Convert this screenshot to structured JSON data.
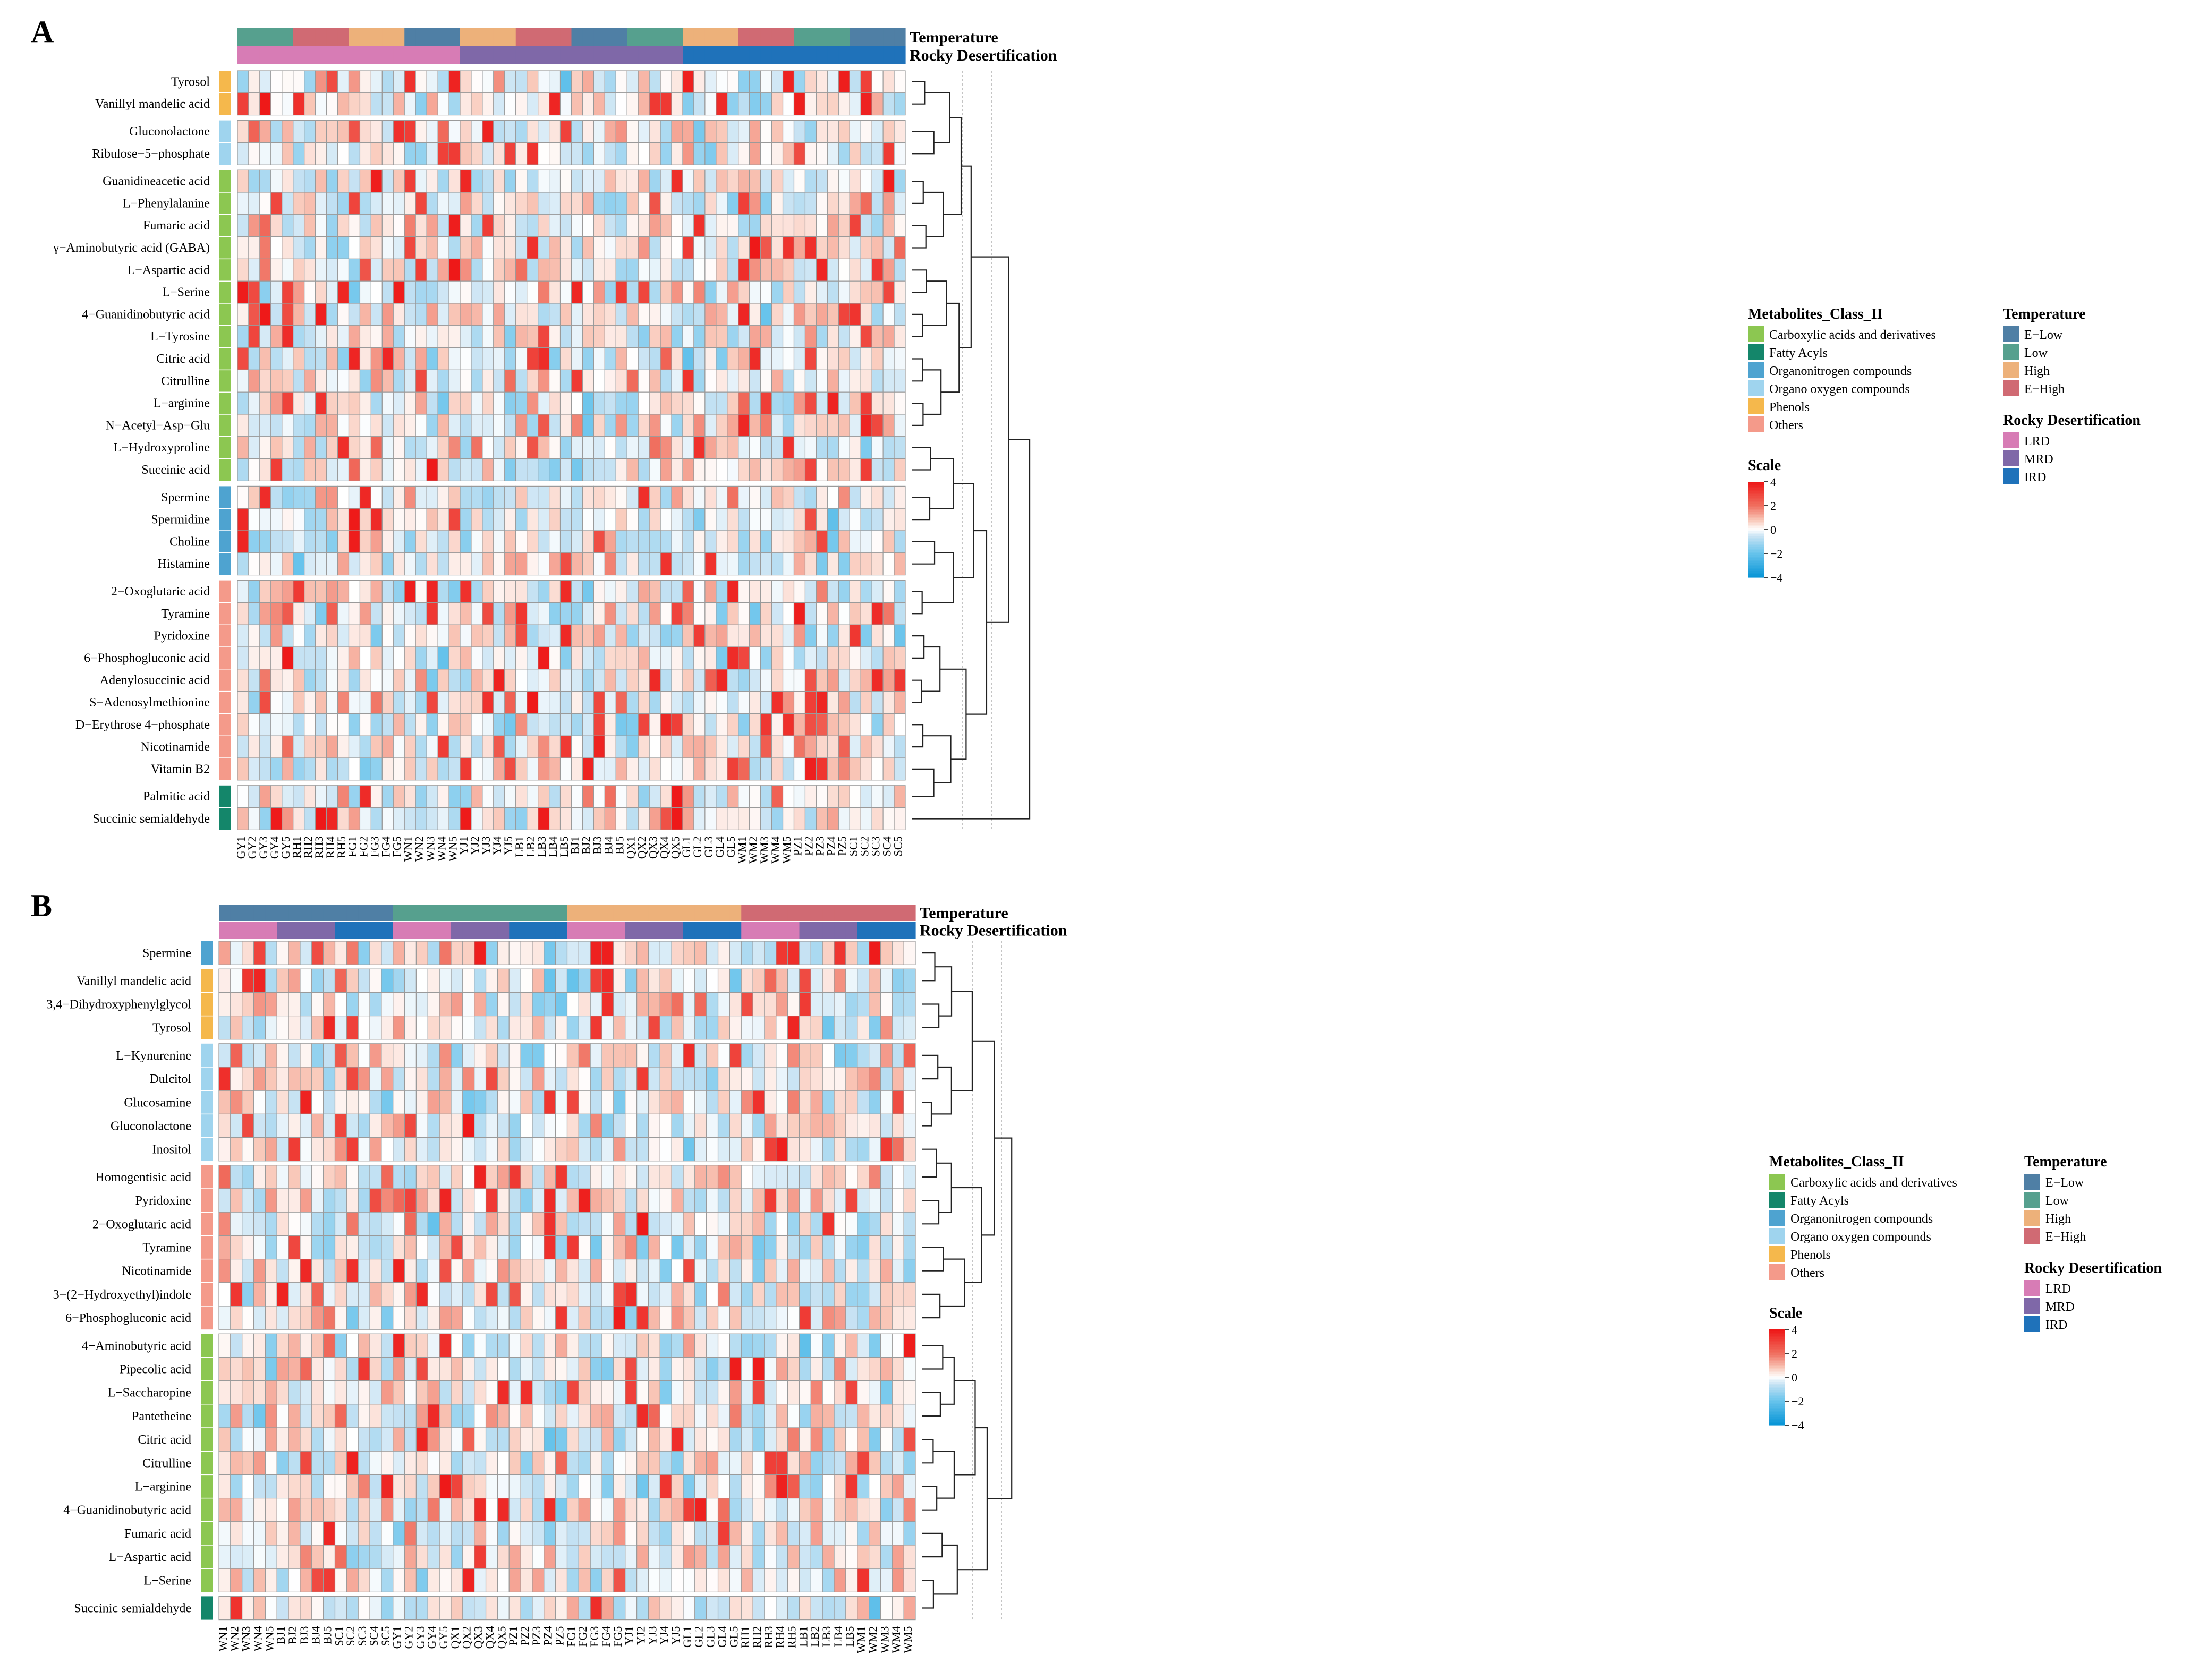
{
  "legend": {
    "class_title": "Metabolites_Class_II",
    "class_items": [
      {
        "label": "Carboxylic acids and derivatives",
        "color": "#8CC751"
      },
      {
        "label": "Fatty Acyls",
        "color": "#14866A"
      },
      {
        "label": "Organonitrogen compounds",
        "color": "#4EA3D0"
      },
      {
        "label": "Organo oxygen compounds",
        "color": "#9FD4EE"
      },
      {
        "label": "Phenols",
        "color": "#F5B84C"
      },
      {
        "label": "Others",
        "color": "#F49A8A"
      }
    ],
    "temp_title": "Temperature",
    "temp_items": [
      {
        "label": "E−Low",
        "color": "#4F7FA5"
      },
      {
        "label": "Low",
        "color": "#56A08E"
      },
      {
        "label": "High",
        "color": "#EDB17A"
      },
      {
        "label": "E−High",
        "color": "#D06A73"
      }
    ],
    "rock_title": "Rocky Desertification",
    "rock_items": [
      {
        "label": "LRD",
        "color": "#D77CB5"
      },
      {
        "label": "MRD",
        "color": "#7F68A8"
      },
      {
        "label": "IRD",
        "color": "#1F72BA"
      }
    ],
    "scale_title": "Scale",
    "scale_ticks": [
      "4",
      "2",
      "0",
      "−2",
      "−4"
    ],
    "scale_values": [
      4,
      2,
      0,
      -2,
      -4
    ]
  },
  "chart_data": [
    {
      "type": "heatmap",
      "panel_label": "A",
      "annotation_labels": [
        "Temperature",
        "Rocky Desertification"
      ],
      "samples": [
        "GY1",
        "GY2",
        "GY3",
        "GY4",
        "GY5",
        "RH1",
        "RH2",
        "RH3",
        "RH4",
        "RH5",
        "FG1",
        "FG2",
        "FG3",
        "FG4",
        "FG5",
        "WN1",
        "WN2",
        "WN3",
        "WN4",
        "WN5",
        "YJ1",
        "YJ2",
        "YJ3",
        "YJ4",
        "YJ5",
        "LB1",
        "LB2",
        "LB3",
        "LB4",
        "LB5",
        "BJ1",
        "BJ2",
        "BJ3",
        "BJ4",
        "BJ5",
        "QX1",
        "QX2",
        "QX3",
        "QX4",
        "QX5",
        "GL1",
        "GL2",
        "GL3",
        "GL4",
        "GL5",
        "WM1",
        "WM2",
        "WM3",
        "WM4",
        "WM5",
        "PZ1",
        "PZ2",
        "PZ3",
        "PZ4",
        "PZ5",
        "SC1",
        "SC2",
        "SC3",
        "SC4",
        "SC5"
      ],
      "sample_temperature": [
        "Low",
        "Low",
        "Low",
        "Low",
        "Low",
        "E-High",
        "E-High",
        "E-High",
        "E-High",
        "E-High",
        "High",
        "High",
        "High",
        "High",
        "High",
        "E-Low",
        "E-Low",
        "E-Low",
        "E-Low",
        "E-Low",
        "High",
        "High",
        "High",
        "High",
        "High",
        "E-High",
        "E-High",
        "E-High",
        "E-High",
        "E-High",
        "E-Low",
        "E-Low",
        "E-Low",
        "E-Low",
        "E-Low",
        "Low",
        "Low",
        "Low",
        "Low",
        "Low",
        "High",
        "High",
        "High",
        "High",
        "High",
        "E-High",
        "E-High",
        "E-High",
        "E-High",
        "E-High",
        "Low",
        "Low",
        "Low",
        "Low",
        "Low",
        "E-Low",
        "E-Low",
        "E-Low",
        "E-Low",
        "E-Low"
      ],
      "sample_rocky": [
        "LRD",
        "LRD",
        "LRD",
        "LRD",
        "LRD",
        "LRD",
        "LRD",
        "LRD",
        "LRD",
        "LRD",
        "LRD",
        "LRD",
        "LRD",
        "LRD",
        "LRD",
        "LRD",
        "LRD",
        "LRD",
        "LRD",
        "LRD",
        "MRD",
        "MRD",
        "MRD",
        "MRD",
        "MRD",
        "MRD",
        "MRD",
        "MRD",
        "MRD",
        "MRD",
        "MRD",
        "MRD",
        "MRD",
        "MRD",
        "MRD",
        "MRD",
        "MRD",
        "MRD",
        "MRD",
        "MRD",
        "IRD",
        "IRD",
        "IRD",
        "IRD",
        "IRD",
        "IRD",
        "IRD",
        "IRD",
        "IRD",
        "IRD",
        "IRD",
        "IRD",
        "IRD",
        "IRD",
        "IRD",
        "IRD",
        "IRD",
        "IRD",
        "IRD",
        "IRD"
      ],
      "groups": [
        {
          "class": "Phenols",
          "metabolites": [
            "Tyrosol",
            "Vanillyl mandelic acid"
          ]
        },
        {
          "class": "Organo oxygen compounds",
          "metabolites": [
            "Gluconolactone",
            "Ribulose−5−phosphate"
          ]
        },
        {
          "class": "Carboxylic acids and derivatives",
          "metabolites": [
            "Guanidineacetic acid",
            "L−Phenylalanine",
            "Fumaric acid",
            "γ−Aminobutyric acid (GABA)",
            "L−Aspartic acid",
            "L−Serine",
            "4−Guanidinobutyric acid",
            "L−Tyrosine",
            "Citric acid",
            "Citrulline",
            "L−arginine",
            "N−Acetyl−Asp−Glu",
            "L−Hydroxyproline",
            "Succinic acid"
          ]
        },
        {
          "class": "Organonitrogen compounds",
          "metabolites": [
            "Spermine",
            "Spermidine",
            "Choline",
            "Histamine"
          ]
        },
        {
          "class": "Others",
          "metabolites": [
            "2−Oxoglutaric acid",
            "Tyramine",
            "Pyridoxine",
            "6−Phosphogluconic acid",
            "Adenylosuccinic acid",
            "S−Adenosylmethionine",
            "D−Erythrose 4−phosphate",
            "Nicotinamide",
            "Vitamin B2"
          ]
        },
        {
          "class": "Fatty Acyls",
          "metabolites": [
            "Palmitic acid",
            "Succinic semialdehyde"
          ]
        }
      ],
      "value_range": [
        -4,
        4
      ],
      "values_note": "z-scores per metabolite; approximated from cell colours",
      "seed": 11
    },
    {
      "type": "heatmap",
      "panel_label": "B",
      "annotation_labels": [
        "Temperature",
        "Rocky Desertification"
      ],
      "samples": [
        "WN1",
        "WN2",
        "WN3",
        "WN4",
        "WN5",
        "BJ1",
        "BJ2",
        "BJ3",
        "BJ4",
        "BJ5",
        "SC1",
        "SC2",
        "SC3",
        "SC4",
        "SC5",
        "GY1",
        "GY2",
        "GY3",
        "GY4",
        "GY5",
        "QX1",
        "QX2",
        "QX3",
        "QX4",
        "QX5",
        "PZ1",
        "PZ2",
        "PZ3",
        "PZ4",
        "PZ5",
        "FG1",
        "FG2",
        "FG3",
        "FG4",
        "FG5",
        "YJ1",
        "YJ2",
        "YJ3",
        "YJ4",
        "YJ5",
        "GL1",
        "GL2",
        "GL3",
        "GL4",
        "GL5",
        "RH1",
        "RH2",
        "RH3",
        "RH4",
        "RH5",
        "LB1",
        "LB2",
        "LB3",
        "LB4",
        "LB5",
        "WM1",
        "WM2",
        "WM3",
        "WM4",
        "WM5"
      ],
      "sample_temperature": [
        "E-Low",
        "E-Low",
        "E-Low",
        "E-Low",
        "E-Low",
        "E-Low",
        "E-Low",
        "E-Low",
        "E-Low",
        "E-Low",
        "E-Low",
        "E-Low",
        "E-Low",
        "E-Low",
        "E-Low",
        "Low",
        "Low",
        "Low",
        "Low",
        "Low",
        "Low",
        "Low",
        "Low",
        "Low",
        "Low",
        "Low",
        "Low",
        "Low",
        "Low",
        "Low",
        "High",
        "High",
        "High",
        "High",
        "High",
        "High",
        "High",
        "High",
        "High",
        "High",
        "High",
        "High",
        "High",
        "High",
        "High",
        "E-High",
        "E-High",
        "E-High",
        "E-High",
        "E-High",
        "E-High",
        "E-High",
        "E-High",
        "E-High",
        "E-High",
        "E-High",
        "E-High",
        "E-High",
        "E-High",
        "E-High"
      ],
      "sample_rocky": [
        "LRD",
        "LRD",
        "LRD",
        "LRD",
        "LRD",
        "MRD",
        "MRD",
        "MRD",
        "MRD",
        "MRD",
        "IRD",
        "IRD",
        "IRD",
        "IRD",
        "IRD",
        "LRD",
        "LRD",
        "LRD",
        "LRD",
        "LRD",
        "MRD",
        "MRD",
        "MRD",
        "MRD",
        "MRD",
        "IRD",
        "IRD",
        "IRD",
        "IRD",
        "IRD",
        "LRD",
        "LRD",
        "LRD",
        "LRD",
        "LRD",
        "MRD",
        "MRD",
        "MRD",
        "MRD",
        "MRD",
        "IRD",
        "IRD",
        "IRD",
        "IRD",
        "IRD",
        "LRD",
        "LRD",
        "LRD",
        "LRD",
        "LRD",
        "MRD",
        "MRD",
        "MRD",
        "MRD",
        "MRD",
        "IRD",
        "IRD",
        "IRD",
        "IRD",
        "IRD"
      ],
      "groups": [
        {
          "class": "Organonitrogen compounds",
          "metabolites": [
            "Spermine"
          ]
        },
        {
          "class": "Phenols",
          "metabolites": [
            "Vanillyl mandelic acid",
            "3,4−Dihydroxyphenylglycol",
            "Tyrosol"
          ]
        },
        {
          "class": "Organo oxygen compounds",
          "metabolites": [
            "L−Kynurenine",
            "Dulcitol",
            "Glucosamine",
            "Gluconolactone",
            "Inositol"
          ]
        },
        {
          "class": "Others",
          "metabolites": [
            "Homogentisic acid",
            "Pyridoxine",
            "2−Oxoglutaric acid",
            "Tyramine",
            "Nicotinamide",
            "3−(2−Hydroxyethyl)indole",
            "6−Phosphogluconic acid"
          ]
        },
        {
          "class": "Carboxylic acids and derivatives",
          "metabolites": [
            "4−Aminobutyric acid",
            "Pipecolic acid",
            "L−Saccharopine",
            "Pantetheine",
            "Citric acid",
            "Citrulline",
            "L−arginine",
            "4−Guanidinobutyric acid",
            "Fumaric acid",
            "L−Aspartic acid",
            "L−Serine"
          ]
        },
        {
          "class": "Fatty Acyls",
          "metabolites": [
            "Succinic semialdehyde"
          ]
        }
      ],
      "value_range": [
        -4,
        4
      ],
      "values_note": "z-scores per metabolite; approximated from cell colours",
      "seed": 29
    }
  ]
}
